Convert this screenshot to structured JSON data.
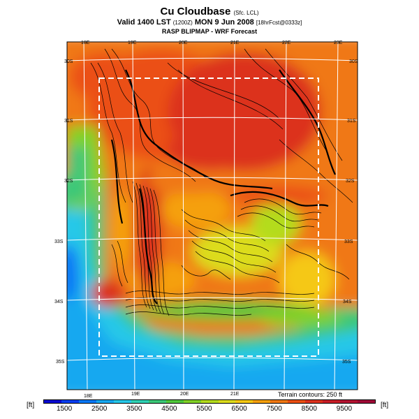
{
  "header": {
    "title": "Cu Cloudbase",
    "title_suffix": "(Sfc. LCL)",
    "valid_prefix": "Valid 1400 LST",
    "valid_utc": "(1200Z)",
    "valid_date": "MON 9 Jun 2008",
    "forecast_info": "[18hrFcst@0333z]",
    "subtitle": "RASP BLIPMAP - WRF Forecast"
  },
  "map": {
    "top_lon_labels": [
      "18E",
      "19E",
      "20E",
      "21E",
      "22E",
      "23E"
    ],
    "bottom_lon_labels": [
      "18E",
      "19E",
      "20E",
      "21E"
    ],
    "left_lat_labels": [
      "30S",
      "31S",
      "32S",
      "33S",
      "34S",
      "35S"
    ],
    "right_lat_labels": [
      "30S",
      "31S",
      "32S",
      "33S",
      "34S",
      "35S"
    ],
    "terrain_note": "Terrain contours: 250 ft"
  },
  "colorbar": {
    "unit": "[ft]",
    "tick_labels": [
      "1500",
      "2500",
      "3500",
      "4500",
      "5500",
      "6500",
      "7500",
      "8500",
      "9500"
    ],
    "colors": [
      "#0a0ad2",
      "#0b3ff0",
      "#0a78f5",
      "#18a8f0",
      "#28c8e8",
      "#30d2b4",
      "#3cc878",
      "#50c83c",
      "#82d228",
      "#b4dc1e",
      "#dcdc1e",
      "#f5c814",
      "#f5a00f",
      "#f07814",
      "#eb5014",
      "#dc321e",
      "#c81e28",
      "#b41432",
      "#a00a37"
    ]
  }
}
